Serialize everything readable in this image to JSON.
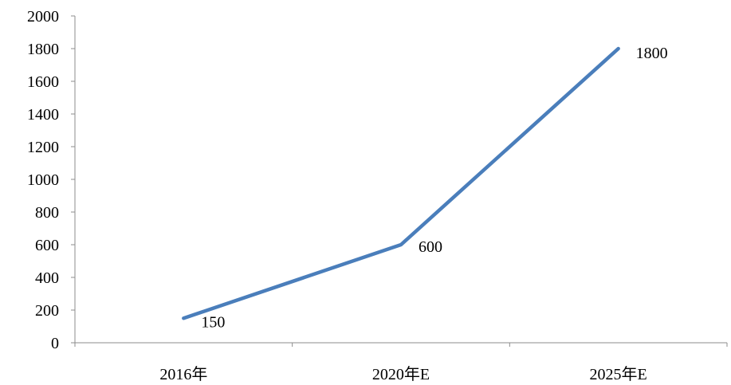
{
  "chart_data": {
    "type": "line",
    "categories": [
      "2016年",
      "2020年E",
      "2025年E"
    ],
    "series": [
      {
        "values": [
          150,
          600,
          1800
        ],
        "color": "#4a7ebb"
      }
    ],
    "data_labels": [
      "150",
      "600",
      "1800"
    ],
    "y_ticks": [
      "0",
      "200",
      "400",
      "600",
      "800",
      "1000",
      "1200",
      "1400",
      "1600",
      "1800",
      "2000"
    ],
    "ylim": [
      0,
      2000
    ],
    "grid": false,
    "legend": "none",
    "title": "",
    "xlabel": "",
    "ylabel": ""
  }
}
